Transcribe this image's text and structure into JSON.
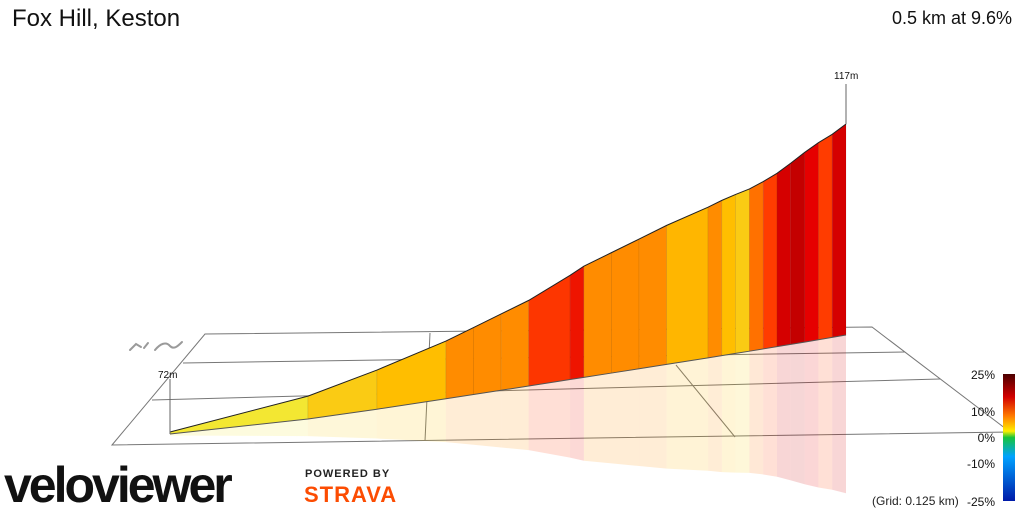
{
  "header": {
    "title": "Fox Hill, Keston",
    "summary": "0.5 km at 9.6%"
  },
  "footer": {
    "brand_logo": "veloviewer",
    "powered_by": "POWERED BY",
    "strava": "STRAVA",
    "grid_note": "(Grid: 0.125 km)"
  },
  "legend": {
    "ticks": [
      "25%",
      "10%",
      "0%",
      "-10%",
      "-25%"
    ],
    "colors": [
      "#4b0000",
      "#d20000",
      "#ff7a00",
      "#ffee00",
      "#17c43b",
      "#00a2ff",
      "#001aa8"
    ]
  },
  "chart_data": {
    "type": "area",
    "title": "Fox Hill, Keston",
    "xlabel": "",
    "ylabel": "",
    "x_unit": "km",
    "y_unit": "m",
    "grid_step_km": 0.125,
    "elevation_start_label": "72m",
    "elevation_end_label": "117m",
    "x": [
      0.0,
      0.1,
      0.15,
      0.2,
      0.22,
      0.24,
      0.26,
      0.29,
      0.3,
      0.32,
      0.34,
      0.36,
      0.39,
      0.4,
      0.41,
      0.42,
      0.43,
      0.44,
      0.45,
      0.46,
      0.47,
      0.48,
      0.49
    ],
    "y": [
      72,
      76.5,
      80,
      84,
      86,
      88,
      90,
      94,
      95.5,
      97.5,
      99.5,
      101.5,
      104,
      105,
      105.8,
      106.5,
      107.6,
      108.9,
      110.6,
      112.4,
      114.0,
      115.3,
      117
    ],
    "gradient_pct": [
      4.5,
      7.0,
      8.0,
      10.0,
      10.0,
      10.0,
      13.3,
      15.0,
      10.0,
      10.0,
      10.0,
      8.3,
      10.0,
      8.0,
      7.0,
      11.0,
      13.0,
      17.0,
      18.0,
      16.0,
      13.0,
      17.0
    ]
  }
}
